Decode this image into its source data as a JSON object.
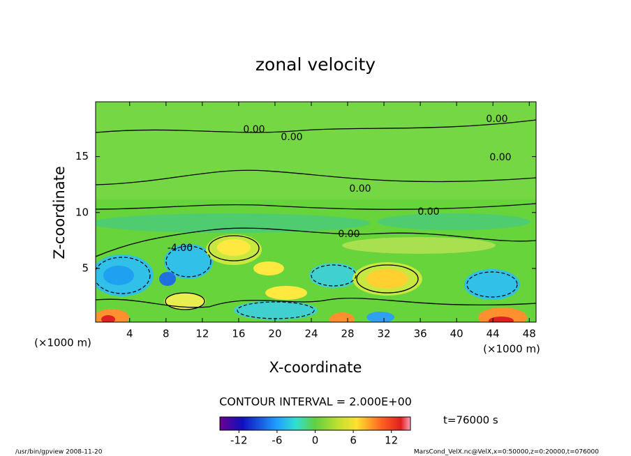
{
  "chart_data": {
    "type": "contour",
    "title": "zonal velocity",
    "x_label": "X-coordinate",
    "y_label": "Z-coordinate",
    "x_unit": "(×1000 m)",
    "y_unit": "(×1000 m)",
    "xlim": [
      0.25,
      48.75
    ],
    "xticks": [
      4,
      8,
      12,
      16,
      20,
      24,
      28,
      32,
      36,
      40,
      44,
      48
    ],
    "ylim": [
      0.2,
      19.9
    ],
    "yticks": [
      5,
      10,
      15
    ],
    "contour_labels": [
      "0.00",
      "0.00",
      "0.00",
      "0.00",
      "0.00",
      "0.00",
      "0.00",
      "-4.00"
    ],
    "contour_interval": "CONTOUR INTERVAL = 2.000E+00",
    "time_label": "t=76000 s",
    "colorbar": {
      "lim": [
        -15,
        15
      ],
      "ticks": [
        -12,
        -6,
        0,
        6,
        12
      ]
    },
    "footer_left": "/usr/bin/gpview   2008-11-20",
    "footer_right": "MarsCond_VelX.nc@VelX,x=0:50000,z=0:20000,t=076000"
  }
}
